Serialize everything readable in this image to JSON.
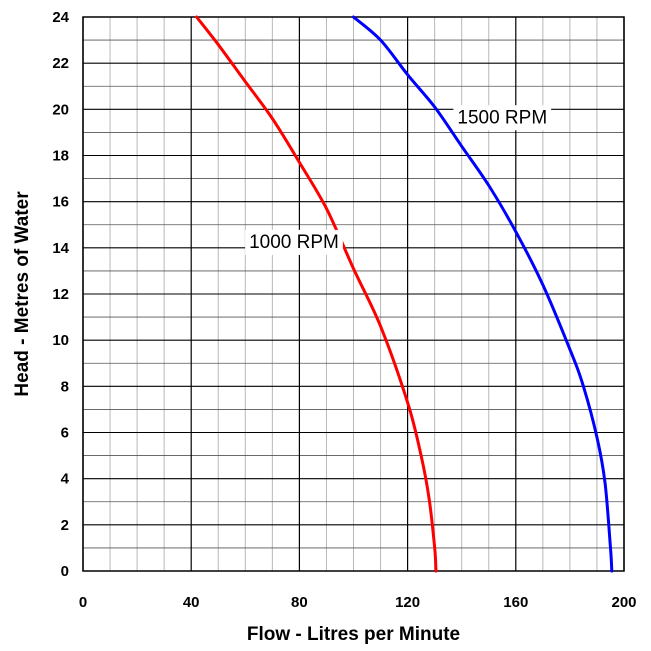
{
  "chart_data": {
    "type": "line",
    "xlabel": "Flow - Litres per Minute",
    "ylabel": "Head - Metres of Water",
    "xlim": [
      0,
      200
    ],
    "ylim": [
      0,
      24
    ],
    "xticks": [
      "0",
      "40",
      "80",
      "120",
      "160",
      "200"
    ],
    "yticks": [
      "0",
      "2",
      "4",
      "6",
      "8",
      "10",
      "12",
      "14",
      "16",
      "18",
      "20",
      "22",
      "24"
    ],
    "grid": true,
    "series": [
      {
        "name": "1000 RPM",
        "color": "#ff0000",
        "x": [
          42,
          50,
          60,
          70,
          80,
          90,
          100,
          110,
          120,
          125,
          128,
          130,
          130.5
        ],
        "y": [
          24,
          22.8,
          21.2,
          19.6,
          17.7,
          15.7,
          13.1,
          10.6,
          7.3,
          5.0,
          3.1,
          1.0,
          0
        ]
      },
      {
        "name": "1500 RPM",
        "color": "#0000ff",
        "x": [
          100,
          110,
          120,
          130,
          140,
          150,
          160,
          170,
          180,
          185,
          190,
          193,
          195,
          195.5
        ],
        "y": [
          24,
          23.0,
          21.5,
          20.1,
          18.4,
          16.7,
          14.7,
          12.4,
          9.6,
          8.0,
          5.8,
          3.8,
          1.0,
          0
        ]
      }
    ]
  }
}
